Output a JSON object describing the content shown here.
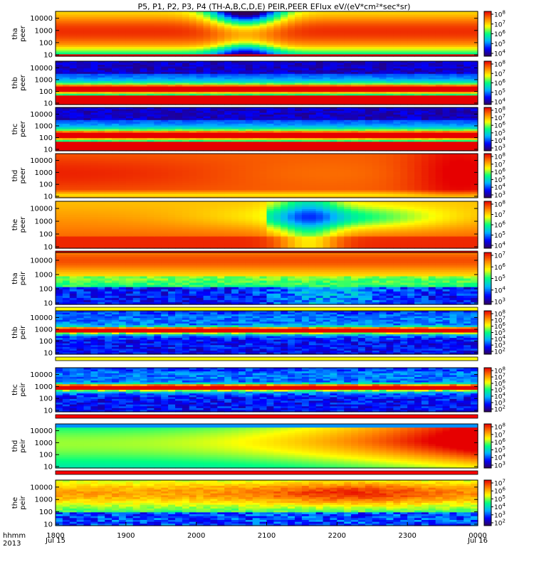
{
  "chart_data": {
    "type": "heatmap",
    "title": "P5, P1, P2, P3, P4 (TH-A,B,C,D,E) PEIR,PEER EFlux eV/(eV*cm²*sec*sr)",
    "x_axis": {
      "row_label_1": "hhmm",
      "row_label_2": "2013",
      "ticks": [
        "1800",
        "1900",
        "2000",
        "2100",
        "2200",
        "2300",
        "0000"
      ],
      "date_start": "Jul 15",
      "date_end": "Jul 16",
      "range_hours": [
        18,
        24
      ]
    },
    "y_scale": "log",
    "panels": [
      {
        "probe": "tha",
        "species": "peer",
        "ylabel": "tha peer",
        "yticks": [
          "10",
          "100",
          "1000",
          "10000"
        ],
        "cb_exp": [
          4,
          5,
          6,
          7,
          8
        ],
        "profile": "tha_peer"
      },
      {
        "probe": "thb",
        "species": "peer",
        "ylabel": "thb peer",
        "yticks": [
          "10",
          "100",
          "1000",
          "10000"
        ],
        "cb_exp": [
          4,
          5,
          6,
          7,
          8
        ],
        "profile": "thb_peer"
      },
      {
        "probe": "thc",
        "species": "peer",
        "ylabel": "thc peer",
        "yticks": [
          "10",
          "100",
          "1000",
          "10000"
        ],
        "cb_exp": [
          3,
          4,
          5,
          6,
          7,
          8
        ],
        "profile": "thb_peer"
      },
      {
        "probe": "thd",
        "species": "peer",
        "ylabel": "thd peer",
        "yticks": [
          "10",
          "100",
          "1000",
          "10000"
        ],
        "cb_exp": [
          3,
          4,
          5,
          6,
          7,
          8
        ],
        "profile": "thd_peer"
      },
      {
        "probe": "the",
        "species": "peer",
        "ylabel": "the peer",
        "yticks": [
          "10",
          "100",
          "1000",
          "10000"
        ],
        "cb_exp": [
          4,
          5,
          6,
          7,
          8
        ],
        "profile": "the_peer"
      },
      {
        "probe": "tha",
        "species": "peir",
        "ylabel": "tha peir",
        "yticks": [
          "10",
          "100",
          "1000",
          "10000"
        ],
        "cb_exp": [
          3,
          4,
          5,
          6,
          7
        ],
        "profile": "tha_peir"
      },
      {
        "probe": "thb",
        "species": "peir",
        "ylabel": "thb peir",
        "yticks": [
          "10",
          "100",
          "1000",
          "10000"
        ],
        "cb_exp": [
          2,
          3,
          4,
          5,
          6,
          7,
          8
        ],
        "profile": "thb_peir"
      },
      {
        "probe": "thc",
        "species": "peir",
        "ylabel": "thc peir",
        "yticks": [
          "10",
          "100",
          "1000",
          "10000"
        ],
        "cb_exp": [
          2,
          3,
          4,
          5,
          6,
          7,
          8
        ],
        "profile": "thb_peir"
      },
      {
        "probe": "thd",
        "species": "peir",
        "ylabel": "thd peir",
        "yticks": [
          "10",
          "100",
          "1000",
          "10000"
        ],
        "cb_exp": [
          3,
          4,
          5,
          6,
          7,
          8
        ],
        "profile": "thd_peir"
      },
      {
        "probe": "the",
        "species": "peir",
        "ylabel": "the peir",
        "yticks": [
          "10",
          "100",
          "1000",
          "10000"
        ],
        "cb_exp": [
          2,
          3,
          4,
          5,
          6,
          7
        ],
        "profile": "the_peir"
      }
    ],
    "colormap": [
      "#30005a",
      "#0000ff",
      "#00b4ff",
      "#00ff80",
      "#ffff00",
      "#ff8000",
      "#e60000"
    ]
  }
}
